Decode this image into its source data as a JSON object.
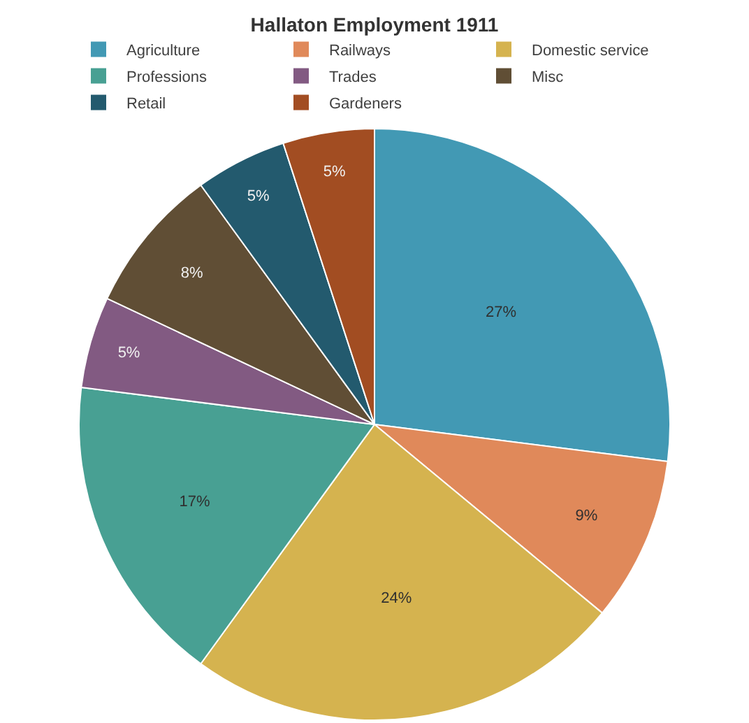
{
  "chart_data": {
    "type": "pie",
    "title": "Hallaton Employment 1911",
    "categories": [
      "Agriculture",
      "Railways",
      "Domestic service",
      "Professions",
      "Trades",
      "Misc",
      "Retail",
      "Gardeners"
    ],
    "values": [
      27,
      9,
      24,
      17,
      5,
      8,
      5,
      5
    ],
    "colors": [
      "#4299b4",
      "#e0895a",
      "#d5b34f",
      "#48a093",
      "#825a82",
      "#604e35",
      "#235a6e",
      "#a24d22"
    ],
    "value_labels": [
      "27%",
      "9%",
      "24%",
      "17%",
      "5%",
      "8%",
      "5%",
      "5%"
    ],
    "legend": "top"
  }
}
